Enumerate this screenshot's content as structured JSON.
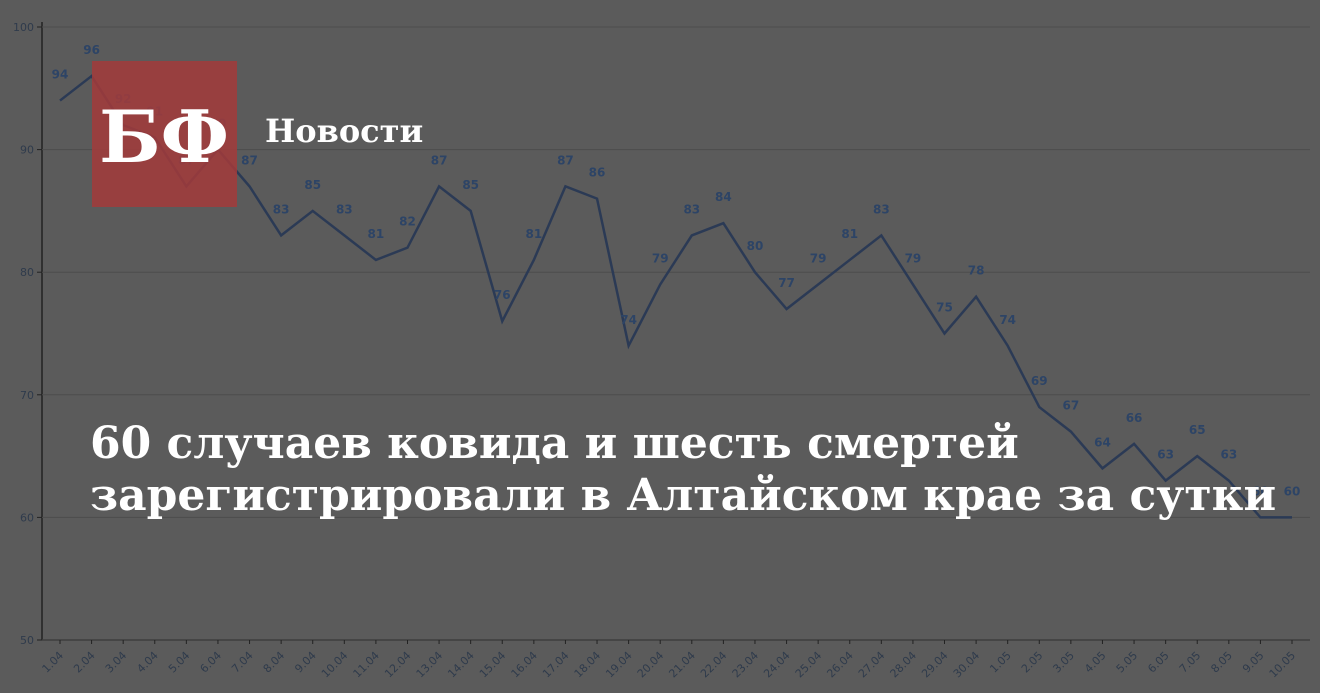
{
  "chart_data": {
    "type": "line",
    "categories": [
      "1.04",
      "2.04",
      "3.04",
      "4.04",
      "5.04",
      "6.04",
      "7.04",
      "8.04",
      "9.04",
      "10.04",
      "11.04",
      "12.04",
      "13.04",
      "14.04",
      "15.04",
      "16.04",
      "17.04",
      "18.04",
      "19.04",
      "20.04",
      "21.04",
      "22.04",
      "23.04",
      "24.04",
      "25.04",
      "26.04",
      "27.04",
      "28.04",
      "29.04",
      "30.04",
      "1.05",
      "2.05",
      "3.05",
      "4.05",
      "5.05",
      "6.05",
      "7.05",
      "8.05",
      "9.05",
      "10.05"
    ],
    "values": [
      94,
      96,
      92,
      91,
      87,
      90,
      87,
      83,
      85,
      83,
      81,
      82,
      87,
      85,
      76,
      81,
      87,
      86,
      74,
      79,
      83,
      84,
      80,
      77,
      79,
      81,
      83,
      79,
      75,
      78,
      74,
      69,
      67,
      64,
      66,
      63,
      65,
      63,
      60,
      60
    ],
    "color": "#2b3a55",
    "ylim": [
      50,
      100
    ],
    "yticks": [
      50,
      60,
      70,
      80,
      90,
      100
    ],
    "grid": true
  },
  "overlay": {
    "logo": "БФ",
    "section": "Новости",
    "headline": [
      "60 случаев ковида и шесть смертей",
      "зарегистрировали в Алтайском крае за сутки"
    ]
  }
}
